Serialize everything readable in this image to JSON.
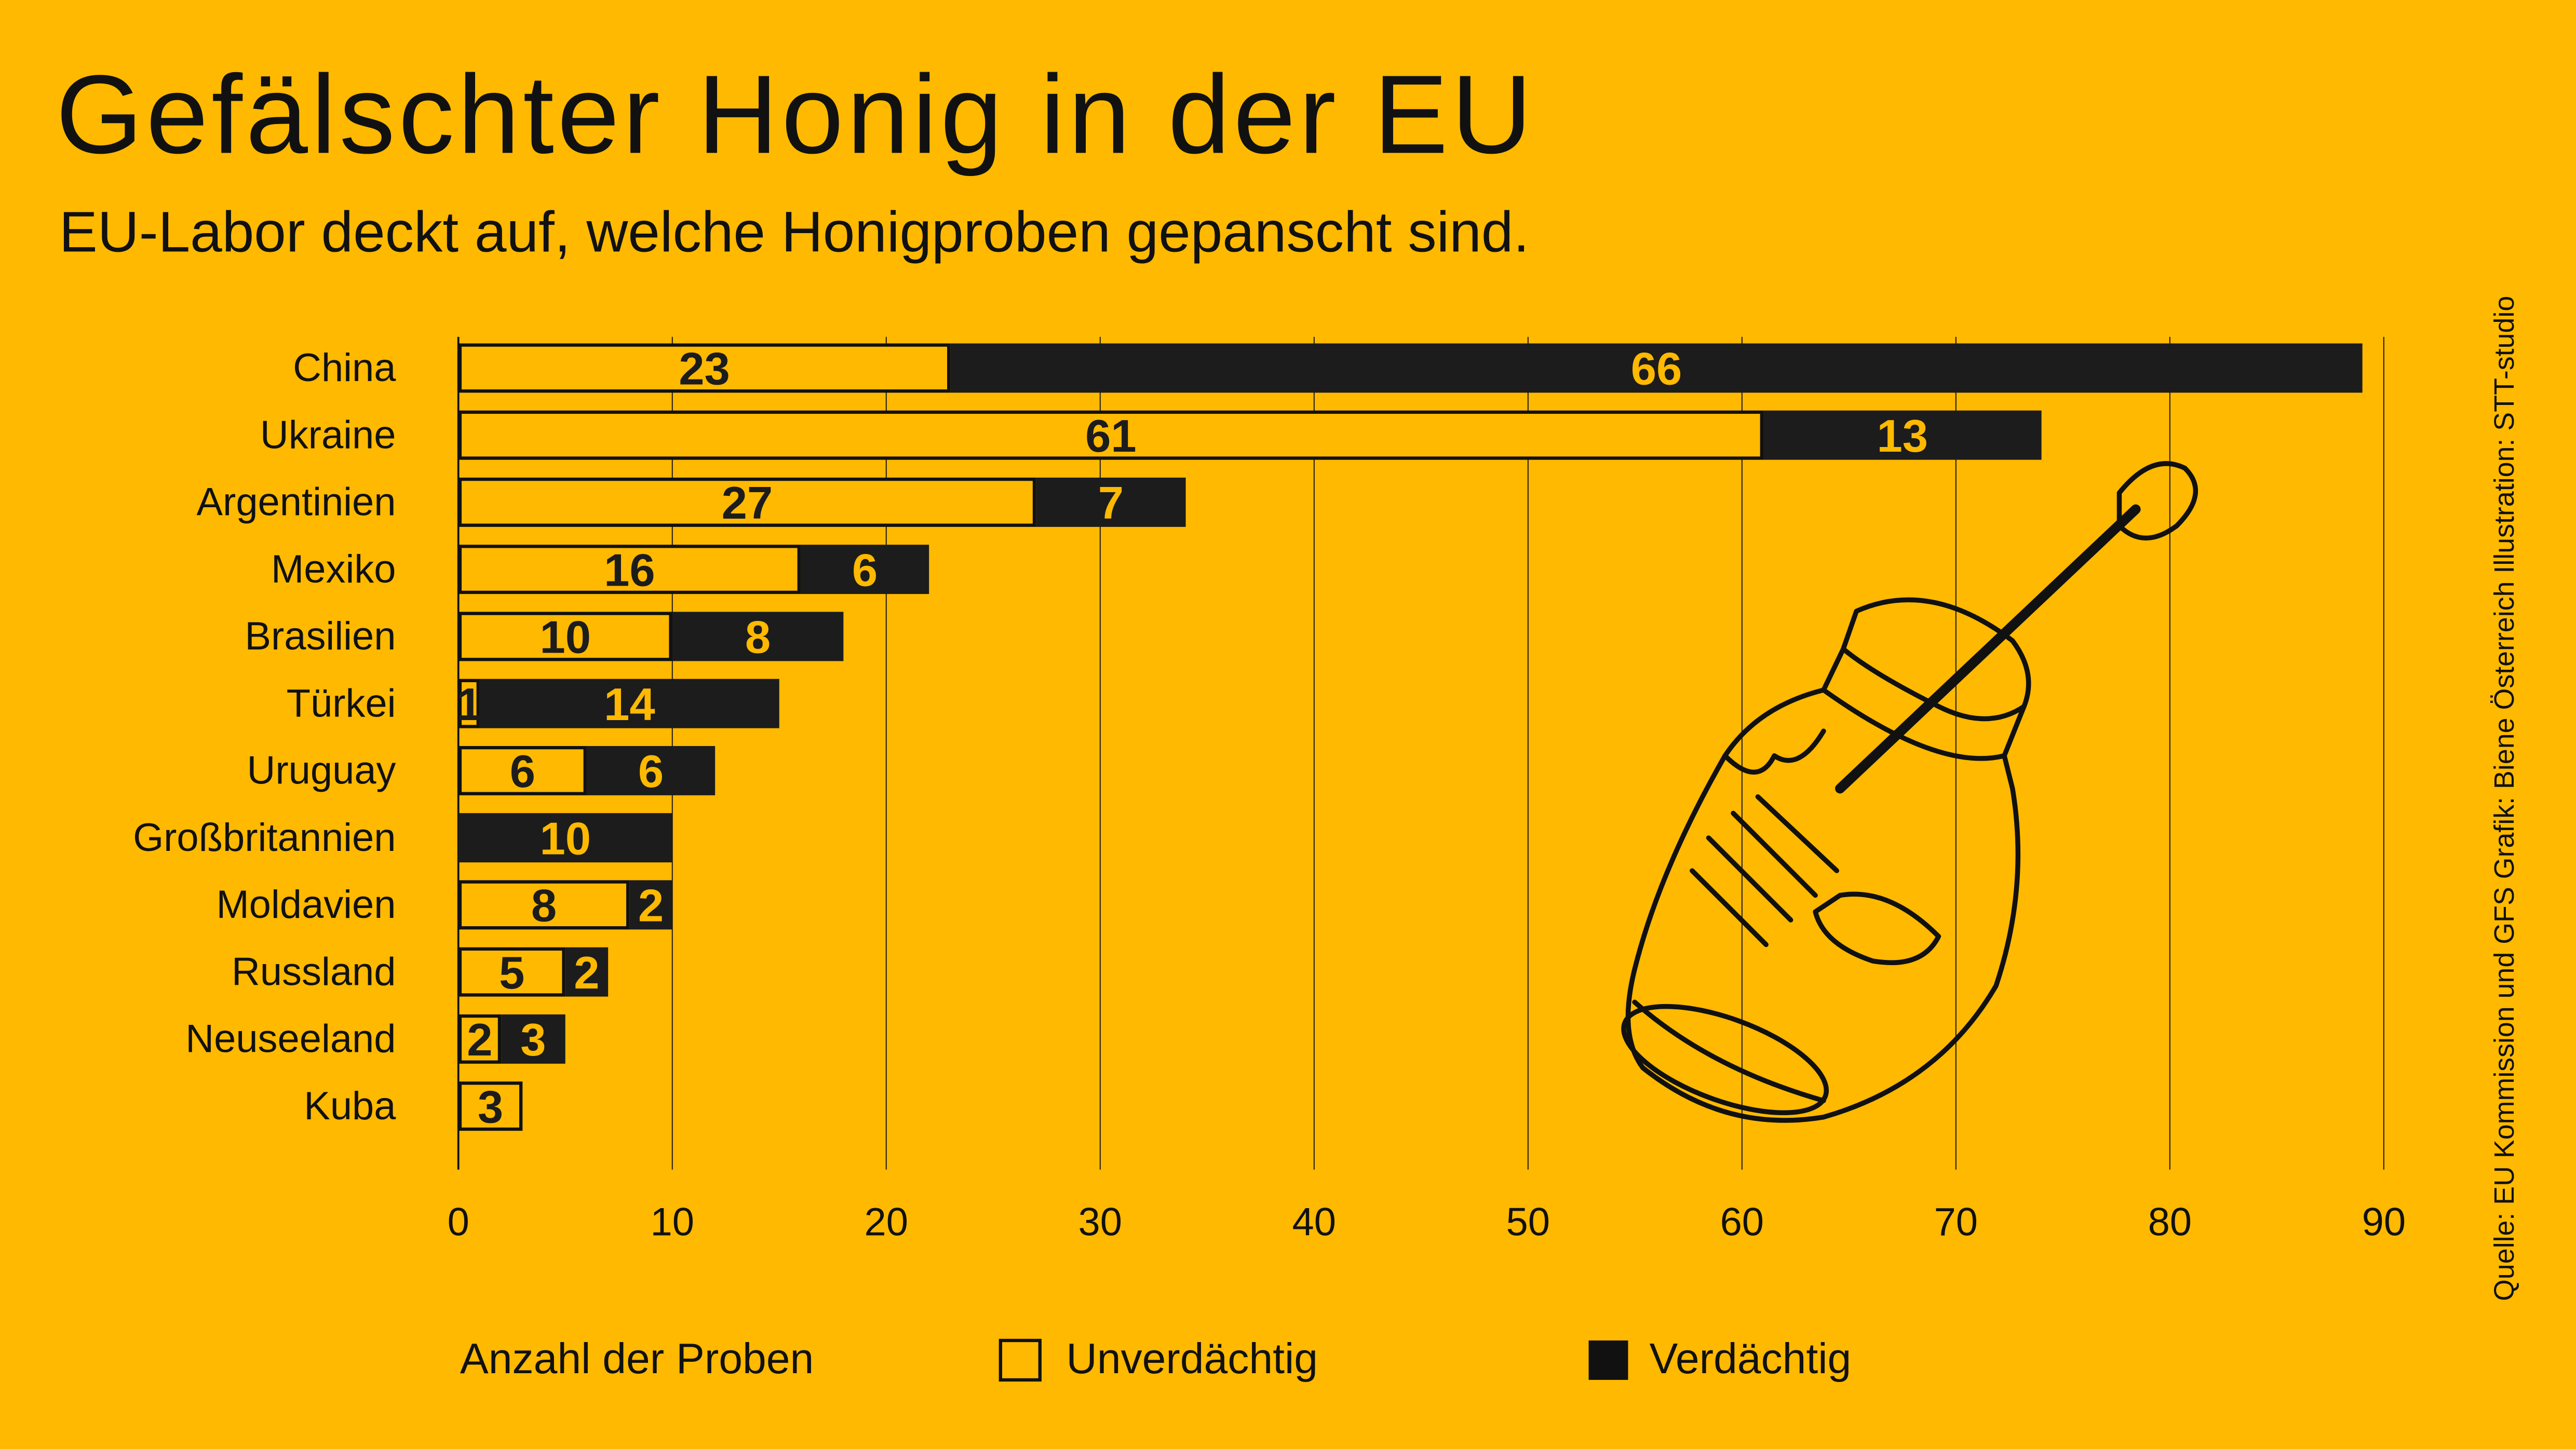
{
  "title": "Gefälschter Honig in der EU",
  "subtitle": "EU-Labor deckt auf, welche Honigproben gepanscht sind.",
  "source": "Quelle: EU Kommission und GFS Grafik: Biene Österreich  Illustration: STT-studio",
  "colors": {
    "background": "#FFB900",
    "suspicious": "#1C1C1C",
    "unsuspicious": "#FFB900",
    "text": "#111111"
  },
  "chart_data": {
    "type": "bar",
    "orientation": "horizontal",
    "stacked": true,
    "categories": [
      "China",
      "Ukraine",
      "Argentinien",
      "Mexiko",
      "Brasilien",
      "Türkei",
      "Uruguay",
      "Großbritannien",
      "Moldavien",
      "Russland",
      "Neuseeland",
      "Kuba"
    ],
    "series": [
      {
        "name": "Unverdächtig",
        "values": [
          23,
          61,
          27,
          16,
          10,
          1,
          6,
          0,
          8,
          5,
          2,
          3
        ]
      },
      {
        "name": "Verdächtig",
        "values": [
          66,
          13,
          7,
          6,
          8,
          14,
          6,
          10,
          2,
          2,
          3,
          0
        ]
      }
    ],
    "xlabel": "Anzahl der Proben",
    "xlim": [
      0,
      90
    ],
    "xticks": [
      0,
      10,
      20,
      30,
      40,
      50,
      60,
      70,
      80,
      90
    ],
    "grid": true,
    "legend": "bottom"
  },
  "legend": {
    "axis_label": "Anzahl der Proben",
    "unsuspicious": "Unverdächtig",
    "suspicious": "Verdächtig"
  }
}
